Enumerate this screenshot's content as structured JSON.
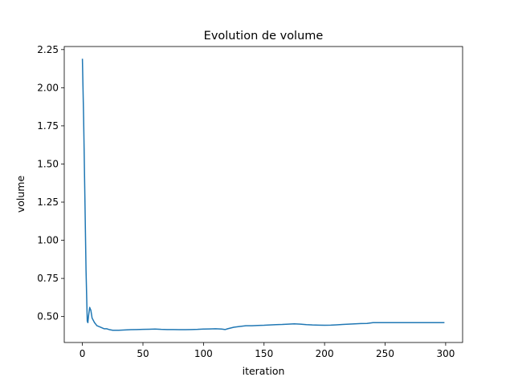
{
  "chart_data": {
    "type": "line",
    "title": "Evolution de volume",
    "xlabel": "iteration",
    "ylabel": "volume",
    "xlim": [
      -15,
      314
    ],
    "ylim": [
      0.33,
      2.27
    ],
    "xticks": [
      0,
      50,
      100,
      150,
      200,
      250,
      300
    ],
    "yticks": [
      0.5,
      0.75,
      1.0,
      1.25,
      1.5,
      1.75,
      2.0,
      2.25
    ],
    "ytick_labels": [
      "0.50",
      "0.75",
      "1.00",
      "1.25",
      "1.50",
      "1.75",
      "2.00",
      "2.25"
    ],
    "grid": false,
    "legend": "none",
    "series": [
      {
        "color": "#1f77b4",
        "points": [
          [
            0,
            2.19
          ],
          [
            1,
            1.8
          ],
          [
            2,
            1.3
          ],
          [
            3,
            0.8
          ],
          [
            4,
            0.47
          ],
          [
            4.5,
            0.46
          ],
          [
            5,
            0.5
          ],
          [
            6,
            0.56
          ],
          [
            7,
            0.54
          ],
          [
            8,
            0.49
          ],
          [
            10,
            0.46
          ],
          [
            12,
            0.44
          ],
          [
            15,
            0.43
          ],
          [
            18,
            0.42
          ],
          [
            20,
            0.42
          ],
          [
            22,
            0.415
          ],
          [
            25,
            0.41
          ],
          [
            30,
            0.41
          ],
          [
            35,
            0.412
          ],
          [
            40,
            0.414
          ],
          [
            45,
            0.415
          ],
          [
            50,
            0.416
          ],
          [
            55,
            0.417
          ],
          [
            60,
            0.418
          ],
          [
            65,
            0.416
          ],
          [
            70,
            0.415
          ],
          [
            75,
            0.415
          ],
          [
            80,
            0.414
          ],
          [
            85,
            0.414
          ],
          [
            90,
            0.415
          ],
          [
            95,
            0.416
          ],
          [
            100,
            0.418
          ],
          [
            105,
            0.419
          ],
          [
            110,
            0.42
          ],
          [
            115,
            0.418
          ],
          [
            118,
            0.415
          ],
          [
            120,
            0.42
          ],
          [
            125,
            0.43
          ],
          [
            130,
            0.435
          ],
          [
            135,
            0.44
          ],
          [
            140,
            0.44
          ],
          [
            145,
            0.442
          ],
          [
            150,
            0.443
          ],
          [
            155,
            0.445
          ],
          [
            160,
            0.447
          ],
          [
            165,
            0.448
          ],
          [
            170,
            0.45
          ],
          [
            175,
            0.452
          ],
          [
            180,
            0.45
          ],
          [
            185,
            0.447
          ],
          [
            190,
            0.445
          ],
          [
            195,
            0.444
          ],
          [
            200,
            0.443
          ],
          [
            205,
            0.444
          ],
          [
            210,
            0.446
          ],
          [
            215,
            0.448
          ],
          [
            220,
            0.45
          ],
          [
            225,
            0.452
          ],
          [
            230,
            0.454
          ],
          [
            235,
            0.455
          ],
          [
            240,
            0.46
          ],
          [
            245,
            0.46
          ],
          [
            250,
            0.46
          ],
          [
            260,
            0.46
          ],
          [
            270,
            0.46
          ],
          [
            280,
            0.46
          ],
          [
            290,
            0.46
          ],
          [
            299,
            0.46
          ]
        ]
      }
    ]
  }
}
